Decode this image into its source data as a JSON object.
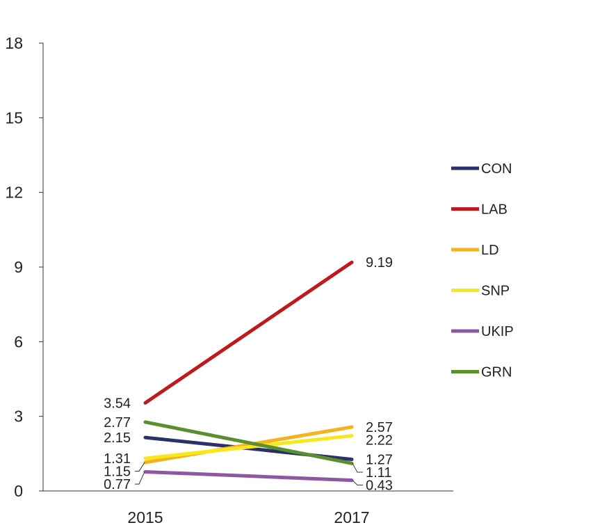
{
  "chart_data": {
    "type": "line",
    "title": "",
    "xlabel": "",
    "ylabel": "",
    "categories": [
      "2015",
      "2017"
    ],
    "ylim": [
      0,
      18
    ],
    "yticks": [
      "0",
      "3",
      "6",
      "9",
      "12",
      "15",
      "18"
    ],
    "grid": false,
    "legend_position": "right",
    "series": [
      {
        "name": "CON",
        "color": "#2b2f6e",
        "values": [
          2.15,
          1.27
        ],
        "labels": [
          "2.15",
          "1.27"
        ]
      },
      {
        "name": "LAB",
        "color": "#c0191c",
        "values": [
          3.54,
          9.19
        ],
        "labels": [
          "3.54",
          "9.19"
        ]
      },
      {
        "name": "LD",
        "color": "#f5b21b",
        "values": [
          1.15,
          2.57
        ],
        "labels": [
          "1.15",
          "2.57"
        ]
      },
      {
        "name": "SNP",
        "color": "#f7e81e",
        "values": [
          1.31,
          2.22
        ],
        "labels": [
          "1.31",
          "2.22"
        ]
      },
      {
        "name": "UKIP",
        "color": "#8e57a4",
        "values": [
          0.77,
          0.43
        ],
        "labels": [
          "0.77",
          "0.43"
        ]
      },
      {
        "name": "GRN",
        "color": "#5a8f2e",
        "values": [
          2.77,
          1.11
        ],
        "labels": [
          "2.77",
          "1.11"
        ]
      }
    ]
  }
}
